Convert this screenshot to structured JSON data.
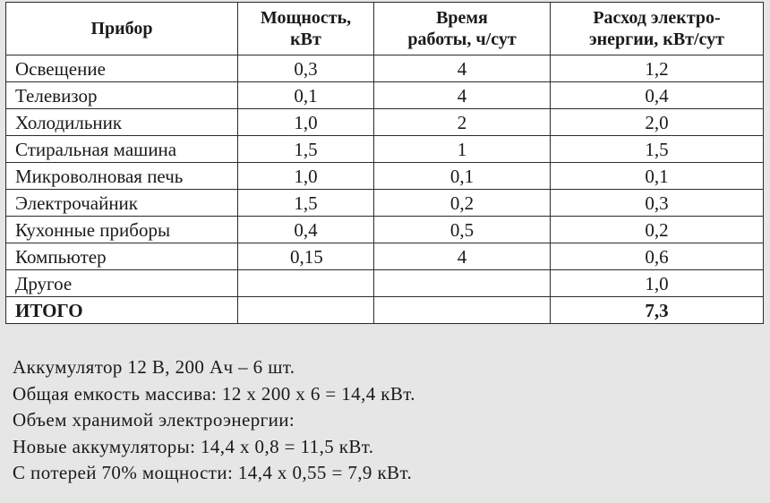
{
  "table": {
    "headers": [
      "Прибор",
      "Мощность, кВт",
      "Время работы, ч/сут",
      "Расход электро-энергии, кВт/сут"
    ],
    "header_lines": [
      [
        "Прибор"
      ],
      [
        "Мощность,",
        "кВт"
      ],
      [
        "Время",
        "работы, ч/сут"
      ],
      [
        "Расход электро-",
        "энергии, кВт/сут"
      ]
    ],
    "rows": [
      {
        "name": "Освещение",
        "power": "0,3",
        "hours": "4",
        "energy": "1,2"
      },
      {
        "name": "Телевизор",
        "power": "0,1",
        "hours": "4",
        "energy": "0,4"
      },
      {
        "name": "Холодильник",
        "power": "1,0",
        "hours": "2",
        "energy": "2,0"
      },
      {
        "name": "Стиральная машина",
        "power": "1,5",
        "hours": "1",
        "energy": "1,5"
      },
      {
        "name": "Микроволновая печь",
        "power": "1,0",
        "hours": "0,1",
        "energy": "0,1"
      },
      {
        "name": "Электрочайник",
        "power": "1,5",
        "hours": "0,2",
        "energy": "0,3"
      },
      {
        "name": "Кухонные приборы",
        "power": "0,4",
        "hours": "0,5",
        "energy": "0,2"
      },
      {
        "name": "Компьютер",
        "power": "0,15",
        "hours": "4",
        "energy": "0,6"
      },
      {
        "name": "Другое",
        "power": "",
        "hours": "",
        "energy": "1,0"
      }
    ],
    "total": {
      "name": "ИТОГО",
      "power": "",
      "hours": "",
      "energy": "7,3"
    }
  },
  "notes": [
    "Аккумулятор 12 В, 200 Ач – 6 шт.",
    "Общая емкость массива: 12 х 200 х 6 = 14,4 кВт.",
    "Объем хранимой электроэнергии:",
    "Новые аккумуляторы: 14,4 х 0,8 = 11,5 кВт.",
    "С потерей 70% мощности: 14,4 х 0,55 = 7,9 кВт."
  ]
}
